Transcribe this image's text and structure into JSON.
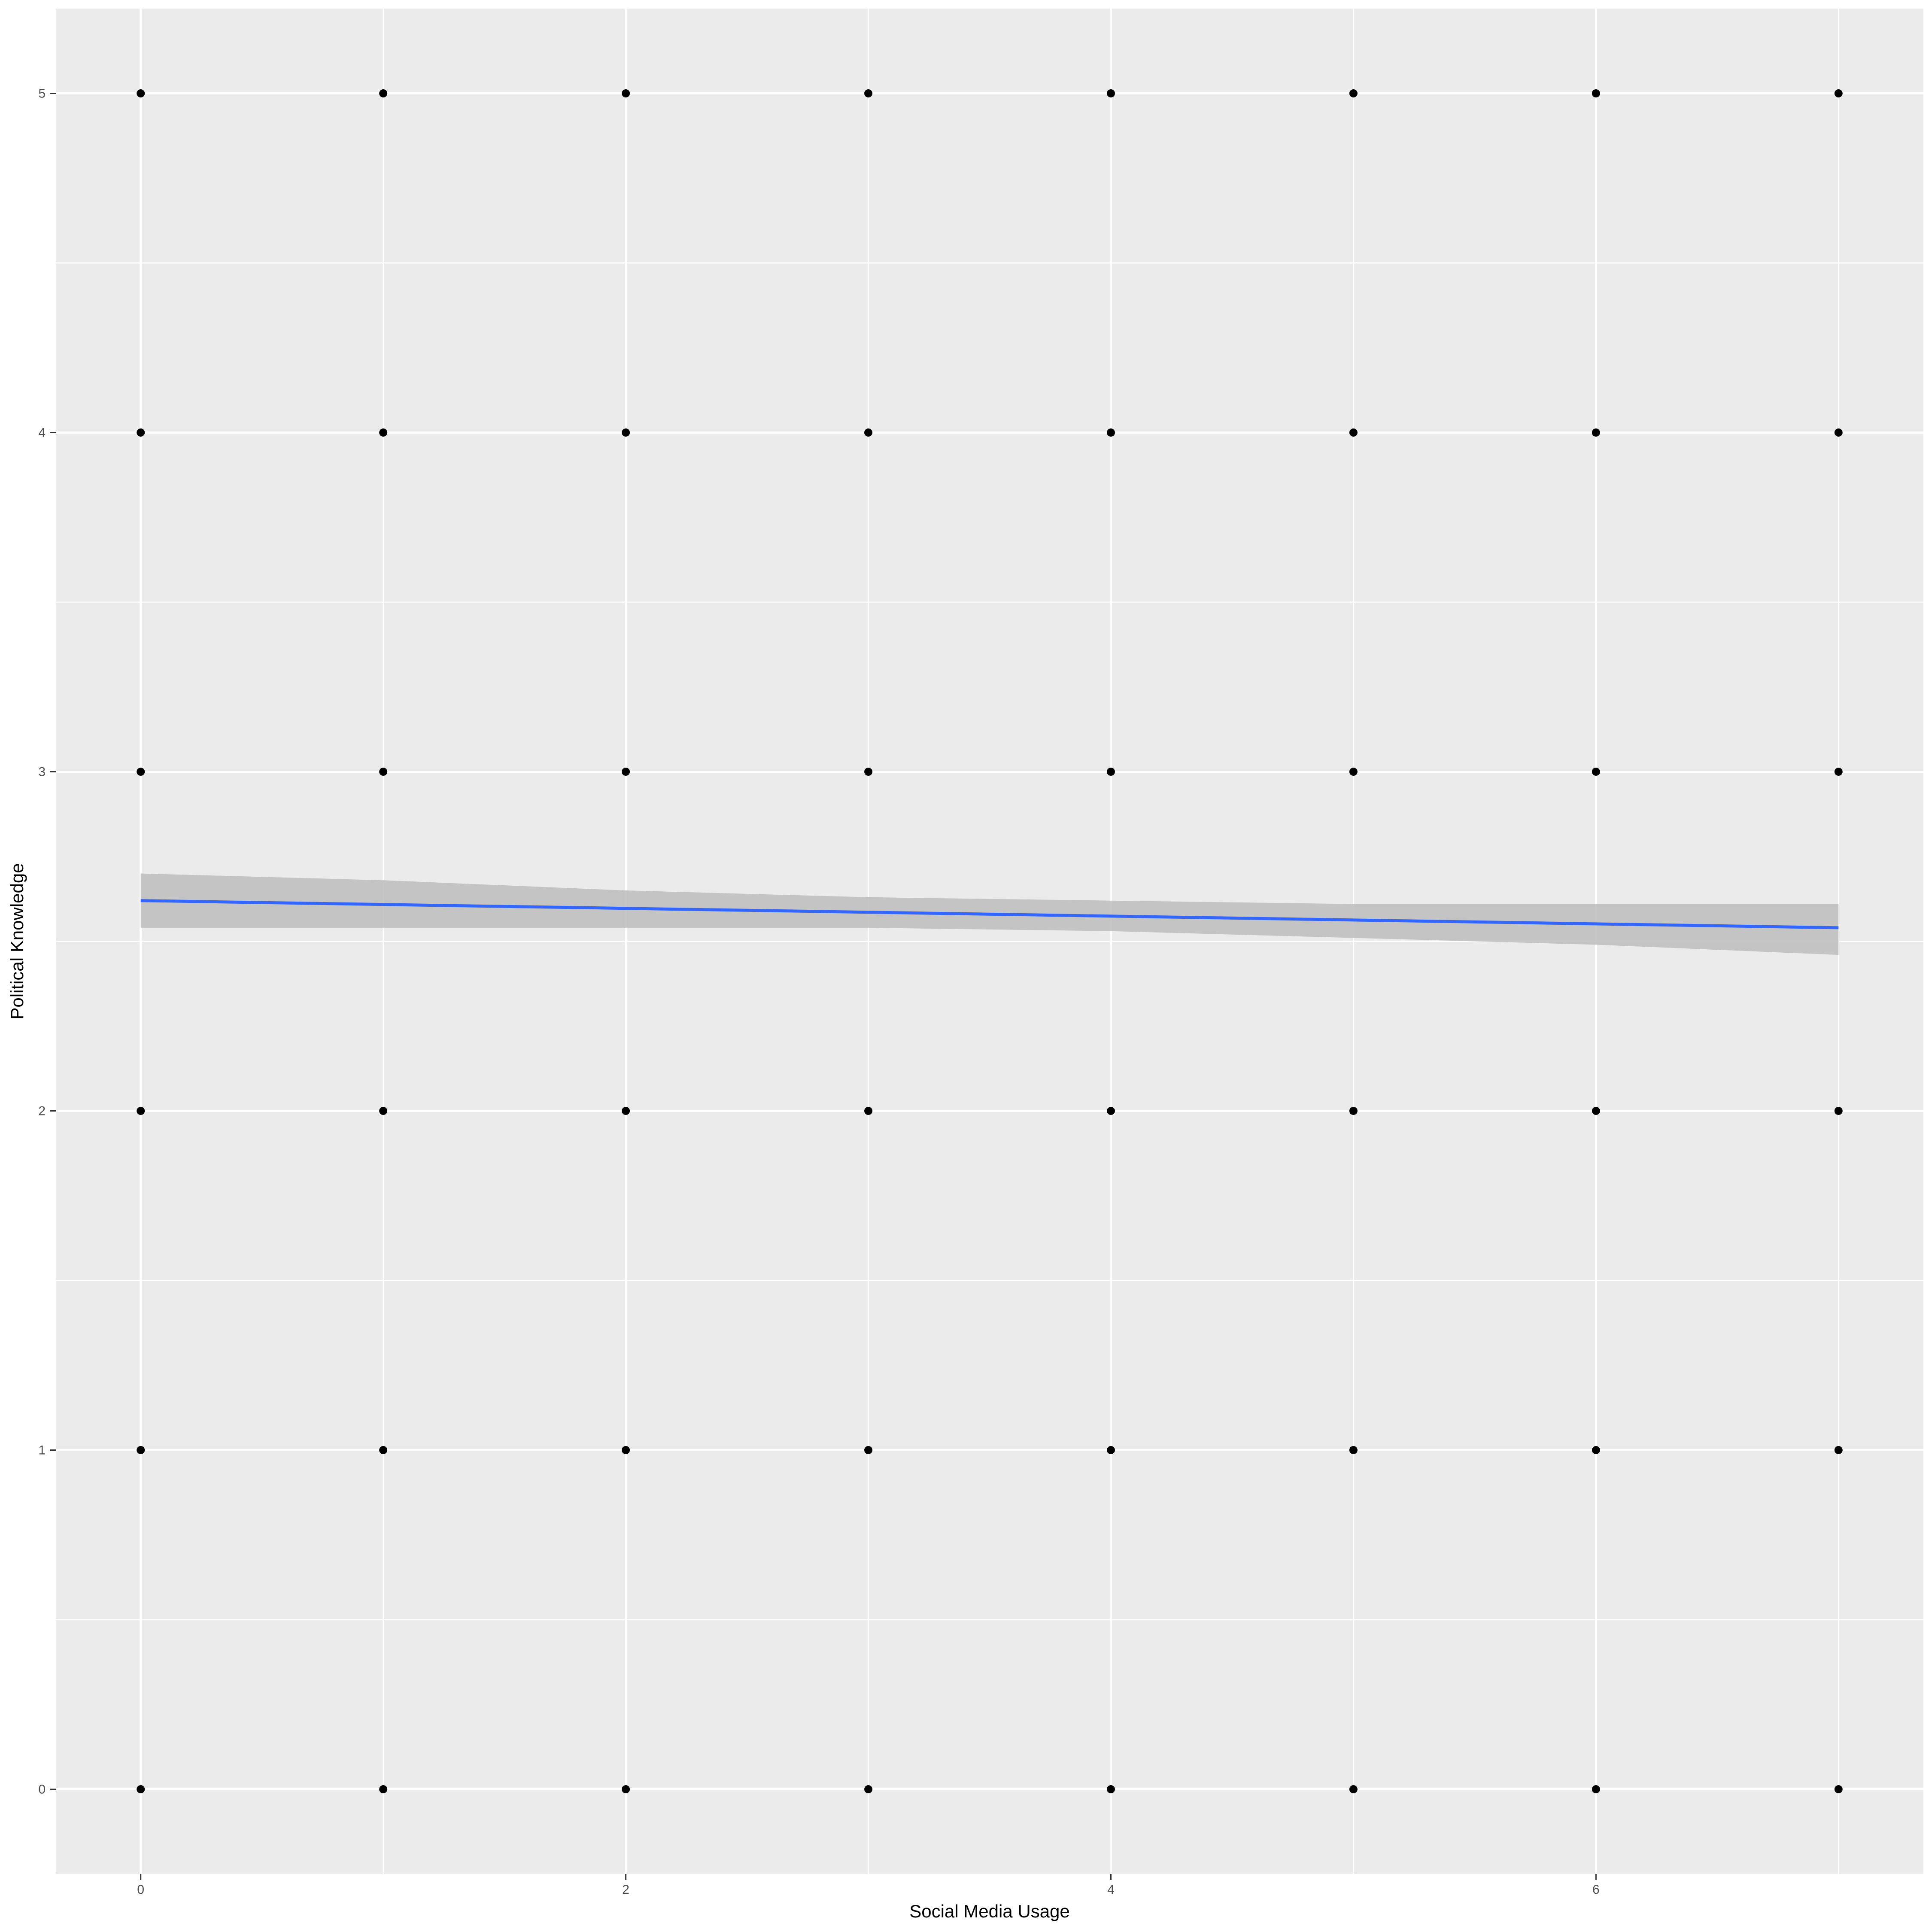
{
  "chart_data": {
    "type": "scatter",
    "title": "",
    "xlabel": "Social Media Usage",
    "ylabel": "Political Knowledge",
    "xlim": [
      -0.35,
      7.35
    ],
    "ylim": [
      -0.25,
      5.25
    ],
    "x_ticks": [
      0,
      2,
      4,
      6
    ],
    "x_minor_ticks": [
      1,
      3,
      5,
      7
    ],
    "y_ticks": [
      0,
      1,
      2,
      3,
      4,
      5
    ],
    "y_minor_ticks": [
      0.5,
      1.5,
      2.5,
      3.5,
      4.5
    ],
    "grid": true,
    "legend": "none",
    "colors": {
      "panel": "#ebebeb",
      "grid": "#ffffff",
      "points": "#000000",
      "fit_line": "#3366ff",
      "ribbon": "#bdbdbd"
    },
    "points": [
      [
        0,
        0
      ],
      [
        1,
        0
      ],
      [
        2,
        0
      ],
      [
        3,
        0
      ],
      [
        4,
        0
      ],
      [
        5,
        0
      ],
      [
        6,
        0
      ],
      [
        7,
        0
      ],
      [
        0,
        1
      ],
      [
        1,
        1
      ],
      [
        2,
        1
      ],
      [
        3,
        1
      ],
      [
        4,
        1
      ],
      [
        5,
        1
      ],
      [
        6,
        1
      ],
      [
        7,
        1
      ],
      [
        0,
        2
      ],
      [
        1,
        2
      ],
      [
        2,
        2
      ],
      [
        3,
        2
      ],
      [
        4,
        2
      ],
      [
        5,
        2
      ],
      [
        6,
        2
      ],
      [
        7,
        2
      ],
      [
        0,
        3
      ],
      [
        1,
        3
      ],
      [
        2,
        3
      ],
      [
        3,
        3
      ],
      [
        4,
        3
      ],
      [
        5,
        3
      ],
      [
        6,
        3
      ],
      [
        7,
        3
      ],
      [
        0,
        4
      ],
      [
        1,
        4
      ],
      [
        2,
        4
      ],
      [
        3,
        4
      ],
      [
        4,
        4
      ],
      [
        5,
        4
      ],
      [
        6,
        4
      ],
      [
        7,
        4
      ],
      [
        0,
        5
      ],
      [
        1,
        5
      ],
      [
        2,
        5
      ],
      [
        3,
        5
      ],
      [
        4,
        5
      ],
      [
        5,
        5
      ],
      [
        6,
        5
      ],
      [
        7,
        5
      ]
    ],
    "fit": {
      "method": "lm",
      "x": [
        0,
        7
      ],
      "y": [
        2.62,
        2.54
      ]
    },
    "confidence_band": {
      "x": [
        0,
        1,
        2,
        3,
        4,
        5,
        6,
        7
      ],
      "lower": [
        2.54,
        2.54,
        2.54,
        2.54,
        2.53,
        2.51,
        2.49,
        2.46
      ],
      "upper": [
        2.7,
        2.68,
        2.65,
        2.63,
        2.62,
        2.61,
        2.61,
        2.61
      ]
    }
  }
}
